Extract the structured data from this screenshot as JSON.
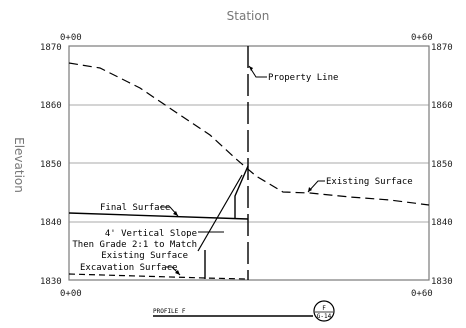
{
  "axes": {
    "top_title": "Station",
    "left_title": "Elevation",
    "x_ticks": [
      "0+00",
      "0+60"
    ],
    "y_ticks": [
      "1830",
      "1840",
      "1850",
      "1860",
      "1870"
    ]
  },
  "labels": {
    "property_line": "Property Line",
    "existing_surface": "Existing Surface",
    "final_surface": "Final Surface",
    "slope_note": [
      "4' Vertical Slope",
      "Then Grade 2:1 to Match",
      "Existing Surface"
    ],
    "excavation_surface": "Excavation Surface"
  },
  "profile": {
    "name": "PROFILE F",
    "symbol_top": "F",
    "symbol_bottom": "G-14"
  },
  "colors": {
    "line": "#000000",
    "grid": "#8c8c8c",
    "frame": "#7a7a7a"
  }
}
